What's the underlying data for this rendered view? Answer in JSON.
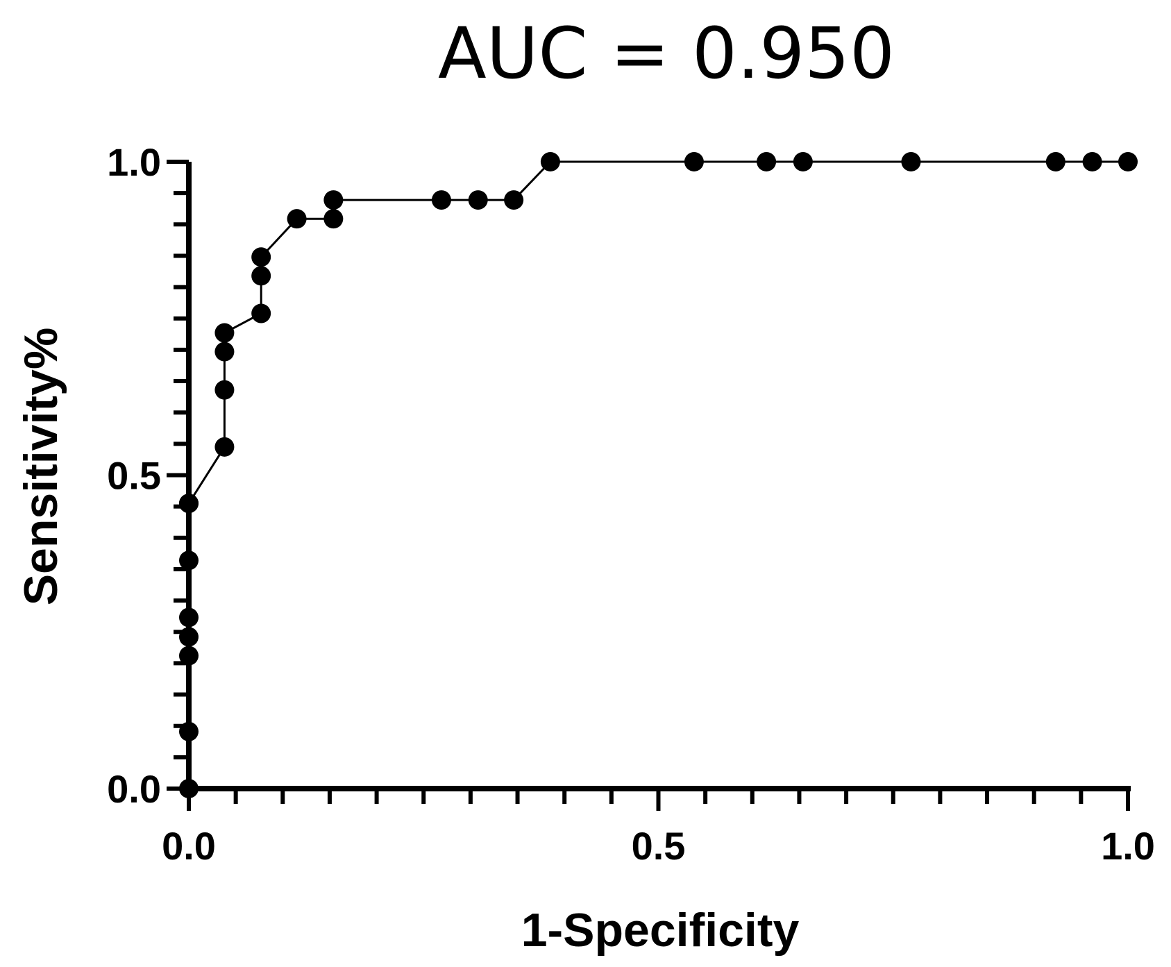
{
  "chart_data": {
    "type": "line",
    "title": "AUC = 0.950",
    "xlabel": "1-Specificity",
    "ylabel": "Sensitivity%",
    "xlim": [
      0,
      1
    ],
    "ylim": [
      0,
      1
    ],
    "x_ticks": [
      "0.0",
      "0.5",
      "1.0"
    ],
    "y_ticks": [
      "0.0",
      "0.5",
      "1.0"
    ],
    "grid": false,
    "legend": "none",
    "markers": "filled circles",
    "color": "#000000",
    "series": [
      {
        "x": [
          0.0,
          0.0,
          0.0,
          0.0,
          0.0,
          0.0,
          0.0,
          0.0,
          0.038,
          0.038,
          0.038,
          0.038,
          0.077,
          0.077,
          0.077,
          0.115,
          0.154,
          0.154,
          0.269,
          0.308,
          0.346,
          0.385,
          0.538,
          0.615,
          0.654,
          0.769,
          0.923,
          0.962,
          1.0
        ],
        "y": [
          0.0,
          0.091,
          0.212,
          0.242,
          0.273,
          0.364,
          0.455,
          0.455,
          0.545,
          0.636,
          0.697,
          0.727,
          0.758,
          0.818,
          0.848,
          0.909,
          0.909,
          0.939,
          0.939,
          0.939,
          0.939,
          1.0,
          1.0,
          1.0,
          1.0,
          1.0,
          1.0,
          1.0,
          1.0
        ]
      }
    ]
  }
}
